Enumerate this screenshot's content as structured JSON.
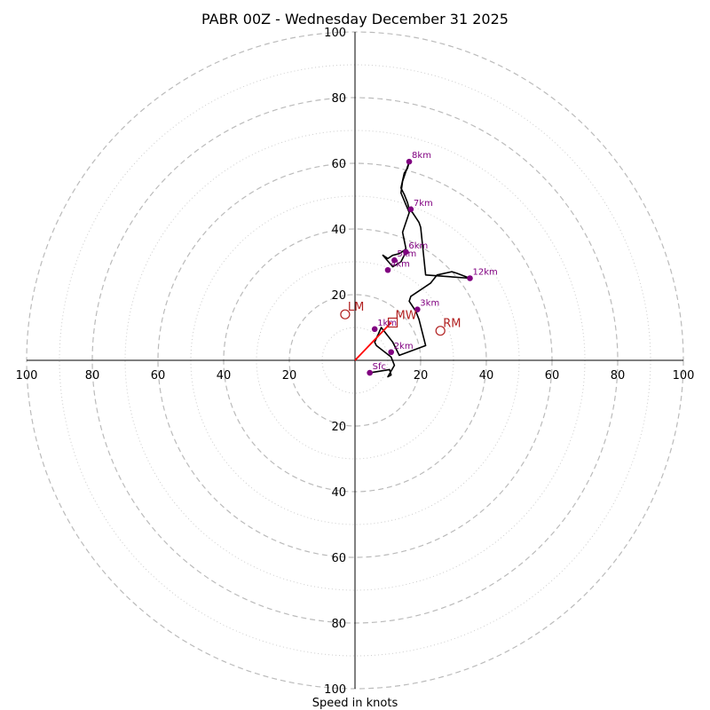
{
  "chart_data": {
    "type": "hodograph",
    "title": "PABR 00Z - Wednesday December 31 2025",
    "xlabel": "Speed in knots",
    "units": "knots",
    "range": [
      -100,
      100
    ],
    "ring_major": [
      20,
      40,
      60,
      80,
      100
    ],
    "ring_minor": [
      10,
      30,
      50,
      70,
      90
    ],
    "x_tick_labels": [
      "100",
      "80",
      "60",
      "40",
      "20",
      "20",
      "40",
      "60",
      "80",
      "100"
    ],
    "x_tick_values": [
      -100,
      -80,
      -60,
      -40,
      -20,
      20,
      40,
      60,
      80,
      100
    ],
    "y_tick_labels": [
      "100",
      "80",
      "60",
      "40",
      "20",
      "20",
      "40",
      "60",
      "80",
      "100"
    ],
    "y_tick_values": [
      100,
      80,
      60,
      40,
      20,
      -20,
      -40,
      -60,
      -80,
      -100
    ],
    "profile": [
      [
        4.5,
        -3.8
      ],
      [
        10.5,
        -2.8
      ],
      [
        11,
        -4.5
      ],
      [
        10,
        -5
      ],
      [
        12,
        -1.5
      ],
      [
        11,
        1
      ],
      [
        6.5,
        4.5
      ],
      [
        6,
        5.5
      ],
      [
        8,
        10
      ],
      [
        11.5,
        5.5
      ],
      [
        13.5,
        1.5
      ],
      [
        21.5,
        4.5
      ],
      [
        19.5,
        12.5
      ],
      [
        18.5,
        15
      ],
      [
        16.5,
        18
      ],
      [
        17,
        19.5
      ],
      [
        23,
        23.5
      ],
      [
        25,
        26
      ],
      [
        29.5,
        27
      ],
      [
        31,
        26.5
      ],
      [
        35,
        25
      ],
      [
        21.5,
        26
      ],
      [
        20,
        40.5
      ],
      [
        19.5,
        42
      ],
      [
        17.5,
        45
      ],
      [
        16.5,
        46
      ],
      [
        16,
        48
      ],
      [
        15,
        50.5
      ],
      [
        14,
        52.5
      ],
      [
        15,
        57
      ],
      [
        16,
        58.5
      ],
      [
        16.5,
        60.5
      ],
      [
        14.5,
        54.5
      ],
      [
        14,
        51
      ],
      [
        16.5,
        45
      ],
      [
        14.5,
        39
      ],
      [
        15.5,
        34
      ],
      [
        15,
        33.5
      ],
      [
        13.5,
        32.5
      ],
      [
        11.5,
        32
      ],
      [
        10,
        31
      ],
      [
        8.5,
        32
      ],
      [
        11.5,
        28.5
      ],
      [
        14,
        30
      ],
      [
        15.5,
        33
      ]
    ],
    "height_labels": [
      {
        "label": "Sfc",
        "u": 4.5,
        "v": -3.8
      },
      {
        "label": "1km",
        "u": 6,
        "v": 9.5
      },
      {
        "label": "2km",
        "u": 11,
        "v": 2.5
      },
      {
        "label": "3km",
        "u": 19,
        "v": 15.5
      },
      {
        "label": "4km",
        "u": 10,
        "v": 27.5
      },
      {
        "label": "5km",
        "u": 12,
        "v": 30.5
      },
      {
        "label": "6km",
        "u": 15.5,
        "v": 33
      },
      {
        "label": "7km",
        "u": 17,
        "v": 46
      },
      {
        "label": "8km",
        "u": 16.5,
        "v": 60.5
      },
      {
        "label": "12km",
        "u": 35,
        "v": 25
      }
    ],
    "storm_motions": [
      {
        "label": "RM",
        "marker": "circle",
        "u": 26,
        "v": 9
      },
      {
        "label": "LM",
        "marker": "circle",
        "u": -3,
        "v": 14
      },
      {
        "label": "MW",
        "marker": "square",
        "u": 11.5,
        "v": 11.5
      }
    ],
    "shear_vector": {
      "from": [
        0,
        0
      ],
      "to": [
        11,
        11.5
      ]
    },
    "colors": {
      "profile": "#000000",
      "height_points": "#800080",
      "storm_motion": "#b22222",
      "shear_vector": "#ff0000",
      "rings": "#bbbbbb",
      "minor_rings": "#cccccc",
      "axes": "#000000"
    }
  }
}
